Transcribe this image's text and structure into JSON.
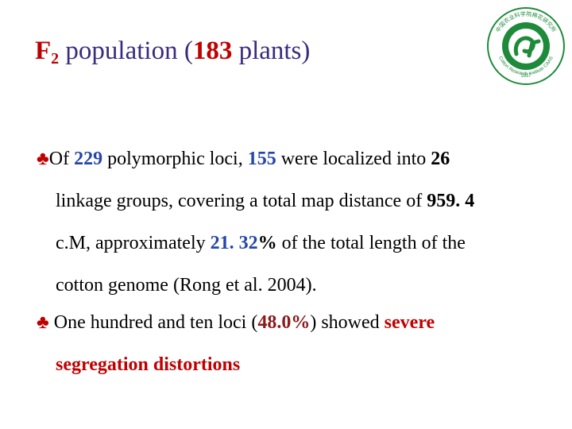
{
  "title": {
    "prefix": "F",
    "subscript": "2",
    "text_before": " population (",
    "count": "183",
    "text_after": " plants)"
  },
  "logo": {
    "text_top": "中国农业科学院棉花研究所",
    "text_bottom": "Cotton Research Institute CAAS",
    "year": "1957",
    "mark": "CRI",
    "color": "#1e8b3a"
  },
  "bullet_symbol": "♣",
  "bullet1": {
    "l1_a": "Of ",
    "l1_n1": "229",
    "l1_b": " polymorphic loci, ",
    "l1_n2": "155",
    "l1_c": " were localized into ",
    "l1_n3": "26",
    "l2_a": "linkage groups, covering a total map distance of ",
    "l2_n": "959. 4",
    "l3_a": "c.M, approximately ",
    "l3_n1": "21. 32",
    "l3_n2": "%",
    "l3_b": " of the total length of the",
    "l4": "cotton genome (Rong et al. 2004)."
  },
  "bullet2": {
    "l1_a": " One hundred and ten loci (",
    "l1_n": "48.0%",
    "l1_b": ") showed ",
    "l1_red": "severe",
    "l2_red": "segregation distortions"
  }
}
